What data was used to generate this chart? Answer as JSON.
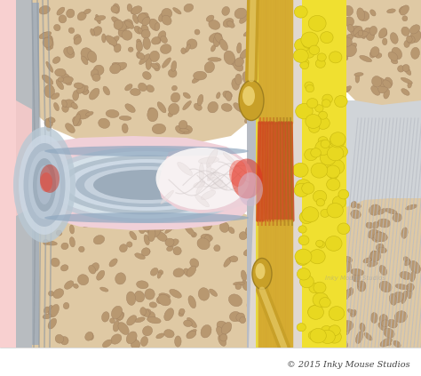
{
  "background_color": "#ffffff",
  "copyright_text": "© 2015 Inky Mouse Studios",
  "copyright_fontsize": 7,
  "bone_color": "#dfc9a4",
  "bone_pore_color": "#b89870",
  "bone_pore_edge": "#a08060",
  "disc_ring_colors": [
    "#c8d8e0",
    "#a8b8c8",
    "#c0ccd8",
    "#98a8b8",
    "#b8c4d0",
    "#90a0b0",
    "#a8b8c8"
  ],
  "disc_pink_color": "#f0d0d8",
  "nucleus_color": "#f5f0f0",
  "nucleus_fiber_color": "#e0d0d0",
  "red_inflammation": "#cc3322",
  "pink_tissue": "#f0c0c8",
  "pink_left": "#f5c8c8",
  "nerve_gold": "#d4a830",
  "nerve_light": "#e8c860",
  "nerve_red": "#cc4422",
  "nerve_orange": "#e06020",
  "fat_bg": "#f0e840",
  "fat_globule": "#d8d020",
  "fat_globule_dark": "#c0b818",
  "gray_ligament": "#c8ccd0",
  "gray_muscle_light": "#d8dce0",
  "gray_muscle_dark": "#b0b8c0",
  "ganglion_outer": "#c8a028",
  "ganglion_inner": "#e8cc68",
  "endplate_color": "#90a8c0",
  "purple_color": "#c0a8cc",
  "spinal_canal_bg": "#e8e0d8",
  "white_area": "#f8f4f0"
}
